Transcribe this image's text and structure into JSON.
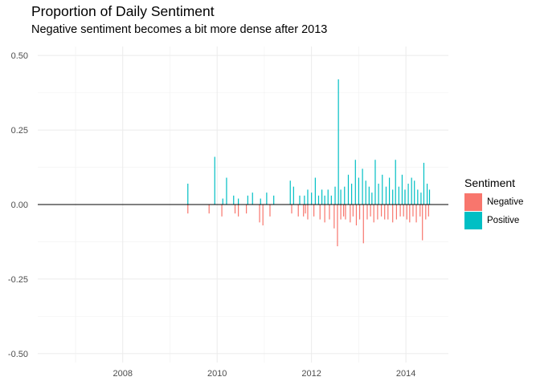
{
  "chart_data": {
    "type": "bar",
    "title": "Proportion of Daily Sentiment",
    "subtitle": "Negative sentiment becomes a bit more dense after 2013",
    "xlabel": "",
    "ylabel": "",
    "x_ticks": [
      "2008",
      "2010",
      "2012",
      "2014"
    ],
    "y_ticks": [
      "-0.50",
      "-0.25",
      "0.00",
      "0.25",
      "0.50"
    ],
    "xlim": [
      2006.2,
      2014.9
    ],
    "ylim": [
      -0.53,
      0.53
    ],
    "grid": true,
    "legend_title": "Sentiment",
    "legend_position": "right",
    "series": [
      {
        "name": "Negative",
        "color": "#F8766D",
        "x": [
          2009.38,
          2009.83,
          2010.1,
          2010.38,
          2010.45,
          2010.62,
          2010.9,
          2010.97,
          2011.12,
          2011.58,
          2011.72,
          2011.83,
          2011.87,
          2011.92,
          2012.05,
          2012.18,
          2012.28,
          2012.38,
          2012.48,
          2012.55,
          2012.62,
          2012.68,
          2012.72,
          2012.82,
          2012.88,
          2012.95,
          2013.02,
          2013.1,
          2013.18,
          2013.25,
          2013.32,
          2013.4,
          2013.48,
          2013.55,
          2013.62,
          2013.72,
          2013.8,
          2013.88,
          2013.95,
          2014.02,
          2014.08,
          2014.15,
          2014.22,
          2014.3,
          2014.35,
          2014.42,
          2014.48
        ],
        "values": [
          -0.03,
          -0.03,
          -0.04,
          -0.03,
          -0.04,
          -0.03,
          -0.06,
          -0.07,
          -0.04,
          -0.03,
          -0.04,
          -0.04,
          -0.03,
          -0.05,
          -0.04,
          -0.05,
          -0.06,
          -0.05,
          -0.08,
          -0.14,
          -0.05,
          -0.04,
          -0.05,
          -0.06,
          -0.04,
          -0.07,
          -0.05,
          -0.13,
          -0.05,
          -0.04,
          -0.06,
          -0.05,
          -0.04,
          -0.05,
          -0.05,
          -0.06,
          -0.05,
          -0.04,
          -0.04,
          -0.05,
          -0.06,
          -0.04,
          -0.06,
          -0.04,
          -0.12,
          -0.05,
          -0.04
        ]
      },
      {
        "name": "Positive",
        "color": "#00BFC4",
        "x": [
          2009.38,
          2009.95,
          2010.12,
          2010.2,
          2010.35,
          2010.45,
          2010.65,
          2010.75,
          2010.92,
          2011.05,
          2011.2,
          2011.55,
          2011.62,
          2011.75,
          2011.85,
          2011.92,
          2012.0,
          2012.08,
          2012.15,
          2012.22,
          2012.28,
          2012.35,
          2012.42,
          2012.5,
          2012.57,
          2012.62,
          2012.7,
          2012.78,
          2012.85,
          2012.93,
          2013.0,
          2013.08,
          2013.15,
          2013.22,
          2013.28,
          2013.35,
          2013.42,
          2013.5,
          2013.58,
          2013.65,
          2013.72,
          2013.78,
          2013.85,
          2013.92,
          2013.98,
          2014.05,
          2014.12,
          2014.18,
          2014.25,
          2014.32,
          2014.38,
          2014.45,
          2014.5
        ],
        "values": [
          0.07,
          0.16,
          0.02,
          0.09,
          0.03,
          0.02,
          0.03,
          0.04,
          0.02,
          0.04,
          0.03,
          0.08,
          0.06,
          0.03,
          0.03,
          0.05,
          0.04,
          0.09,
          0.03,
          0.05,
          0.03,
          0.05,
          0.03,
          0.06,
          0.42,
          0.05,
          0.06,
          0.1,
          0.07,
          0.15,
          0.09,
          0.12,
          0.08,
          0.06,
          0.04,
          0.15,
          0.07,
          0.1,
          0.06,
          0.09,
          0.05,
          0.15,
          0.06,
          0.1,
          0.05,
          0.07,
          0.09,
          0.08,
          0.05,
          0.04,
          0.14,
          0.07,
          0.05
        ]
      }
    ]
  }
}
